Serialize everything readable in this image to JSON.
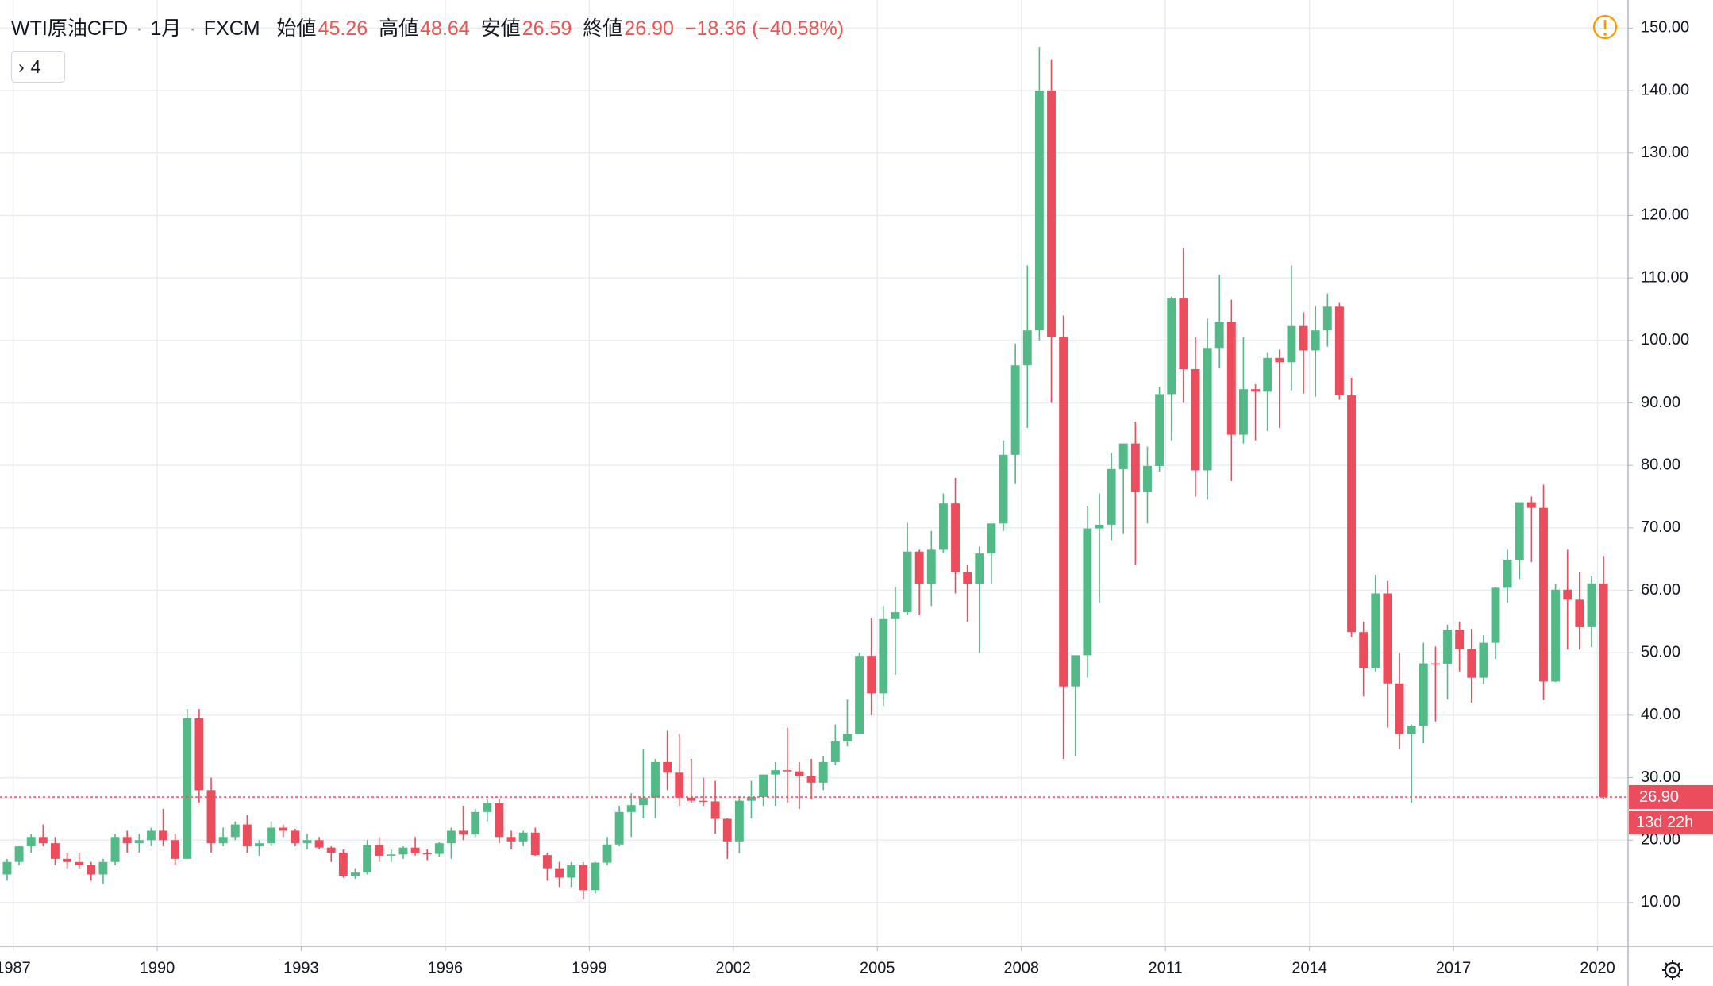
{
  "header": {
    "symbol": "WTI原油CFD",
    "interval": "1月",
    "exchange": "FXCM",
    "open_label": "始値",
    "open": "45.26",
    "high_label": "高値",
    "high": "48.64",
    "low_label": "安値",
    "low": "26.59",
    "close_label": "終値",
    "close": "26.90",
    "change": "−18.36 (−40.58%)",
    "indicator_count": "4"
  },
  "chart_data": {
    "type": "candlestick",
    "up_color": "#53b987",
    "down_color": "#eb4d5c",
    "grid": true,
    "xlim": [
      1986.727,
      2020.636
    ],
    "ylim": [
      3.0,
      154.5
    ],
    "xticks": [
      1987,
      1990,
      1993,
      1996,
      1999,
      2002,
      2005,
      2008,
      2011,
      2014,
      2017,
      2020
    ],
    "yticks": [
      {
        "value": 10,
        "label": "10.00"
      },
      {
        "value": 20,
        "label": "20.00"
      },
      {
        "value": 30,
        "label": "30.00"
      },
      {
        "value": 40,
        "label": "40.00"
      },
      {
        "value": 50,
        "label": "50.00"
      },
      {
        "value": 60,
        "label": "60.00"
      },
      {
        "value": 70,
        "label": "70.00"
      },
      {
        "value": 80,
        "label": "80.00"
      },
      {
        "value": 90,
        "label": "90.00"
      },
      {
        "value": 100,
        "label": "100.00"
      },
      {
        "value": 110,
        "label": "110.00"
      },
      {
        "value": 120,
        "label": "120.00"
      },
      {
        "value": 130,
        "label": "130.00"
      },
      {
        "value": 140,
        "label": "140.00"
      },
      {
        "value": 150,
        "label": "150.00"
      }
    ],
    "price_label": {
      "value": 26.9,
      "label": "26.90"
    },
    "countdown": "13d 22h",
    "x": [
      1986.875,
      1987.125,
      1987.375,
      1987.625,
      1987.875,
      1988.125,
      1988.375,
      1988.625,
      1988.875,
      1989.125,
      1989.375,
      1989.625,
      1989.875,
      1990.125,
      1990.375,
      1990.625,
      1990.875,
      1991.125,
      1991.375,
      1991.625,
      1991.875,
      1992.125,
      1992.375,
      1992.625,
      1992.875,
      1993.125,
      1993.375,
      1993.625,
      1993.875,
      1994.125,
      1994.375,
      1994.625,
      1994.875,
      1995.125,
      1995.375,
      1995.625,
      1995.875,
      1996.125,
      1996.375,
      1996.625,
      1996.875,
      1997.125,
      1997.375,
      1997.625,
      1997.875,
      1998.125,
      1998.375,
      1998.625,
      1998.875,
      1999.125,
      1999.375,
      1999.625,
      1999.875,
      2000.125,
      2000.375,
      2000.625,
      2000.875,
      2001.125,
      2001.375,
      2001.625,
      2001.875,
      2002.125,
      2002.375,
      2002.625,
      2002.875,
      2003.125,
      2003.375,
      2003.625,
      2003.875,
      2004.125,
      2004.375,
      2004.625,
      2004.875,
      2005.125,
      2005.375,
      2005.625,
      2005.875,
      2006.125,
      2006.375,
      2006.625,
      2006.875,
      2007.125,
      2007.375,
      2007.625,
      2007.875,
      2008.125,
      2008.375,
      2008.625,
      2008.875,
      2009.125,
      2009.375,
      2009.625,
      2009.875,
      2010.125,
      2010.375,
      2010.625,
      2010.875,
      2011.125,
      2011.375,
      2011.625,
      2011.875,
      2012.125,
      2012.375,
      2012.625,
      2012.875,
      2013.125,
      2013.375,
      2013.625,
      2013.875,
      2014.125,
      2014.375,
      2014.625,
      2014.875,
      2015.125,
      2015.375,
      2015.625,
      2015.875,
      2016.125,
      2016.375,
      2016.625,
      2016.875,
      2017.125,
      2017.375,
      2017.625,
      2017.875,
      2018.125,
      2018.375,
      2018.625,
      2018.875,
      2019.125,
      2019.375,
      2019.625,
      2019.875,
      2020.125
    ],
    "open": [
      14.5,
      16.5,
      19,
      20.5,
      19.5,
      17,
      16.5,
      16,
      14.5,
      16.5,
      20.5,
      19.5,
      20,
      21.5,
      20,
      17,
      39.5,
      28,
      19.5,
      20.5,
      22.5,
      19,
      19.5,
      22,
      21.5,
      19.5,
      20,
      18.8,
      18,
      14.3,
      14.8,
      19.2,
      17.5,
      17.7,
      18.8,
      17.9,
      17.8,
      19.5,
      21.5,
      20.9,
      24.5,
      25.9,
      20.5,
      19.8,
      21.2,
      17.6,
      15.5,
      14,
      16,
      12,
      16.4,
      19.3,
      24.5,
      25.6,
      26.8,
      32.5,
      30.8,
      26.8,
      26.3,
      26.2,
      23.4,
      19.8,
      26.3,
      26.9,
      30.5,
      31.2,
      31,
      30.2,
      29.2,
      32.5,
      35.8,
      37,
      49.5,
      43.5,
      55.4,
      56.5,
      66.2,
      61,
      66.5,
      73.9,
      62.9,
      61,
      65.9,
      70.7,
      81.7,
      96,
      101.6,
      140,
      100.6,
      44.6,
      49.6,
      69.9,
      70.5,
      79.4,
      83.5,
      75.7,
      79.9,
      91.4,
      106.7,
      95.4,
      79.2,
      98.8,
      103,
      84.9,
      92.2,
      91.8,
      97.2,
      96.5,
      102.3,
      98.4,
      101.6,
      105.4,
      91.2,
      53.3,
      47.6,
      59.5,
      45.1,
      37,
      38.3,
      48.3,
      48.2,
      53.7,
      50.6,
      46,
      51.6,
      60.4,
      64.9,
      74.1,
      73.2,
      45.4,
      60.1,
      58.5,
      54.1,
      61.1
    ],
    "high": [
      17,
      19,
      21,
      22.5,
      20.5,
      18,
      18,
      16.5,
      17,
      21,
      21.5,
      21,
      22,
      25,
      21,
      41,
      41,
      30,
      22,
      23,
      24,
      20,
      23,
      22.5,
      21.8,
      21,
      20.5,
      19,
      18.5,
      15.5,
      20,
      20.5,
      18.5,
      19,
      20.5,
      18.5,
      19.7,
      22,
      25.5,
      25,
      26.5,
      26.5,
      21.5,
      21.5,
      22,
      18,
      16.5,
      16.5,
      16.5,
      16.5,
      20.5,
      25.5,
      27.5,
      34.5,
      33,
      37.5,
      37,
      33,
      30,
      29.5,
      23.5,
      27,
      29.5,
      30.5,
      32.5,
      38,
      32.5,
      33,
      33.5,
      38.5,
      42.5,
      50,
      55.5,
      57.5,
      60.5,
      70.8,
      66.5,
      69.5,
      75.5,
      78,
      64,
      67,
      70.5,
      84,
      99.5,
      112,
      147,
      145,
      104,
      49.5,
      73.5,
      75.5,
      82,
      83,
      87,
      83,
      92.5,
      107,
      114.8,
      100.5,
      103.5,
      110.5,
      106.5,
      100.5,
      93,
      98,
      98.5,
      112,
      104.5,
      105.5,
      107.5,
      106,
      94,
      55,
      62.5,
      61.5,
      50,
      38.5,
      51.6,
      51,
      54.5,
      55,
      53.8,
      52.8,
      60.5,
      66.5,
      72.8,
      75,
      76.9,
      61,
      66.5,
      63,
      62.3,
      65.5
    ],
    "low": [
      13.5,
      16,
      18,
      19,
      16,
      15.5,
      15.5,
      13.5,
      13,
      16,
      18,
      18,
      19,
      19,
      16,
      17,
      26,
      18,
      19,
      20,
      18,
      17.5,
      19,
      20.5,
      19,
      18.5,
      18.5,
      16.5,
      14,
      13.8,
      14.5,
      16.5,
      16.5,
      17,
      17.5,
      16.8,
      17.3,
      17,
      20,
      20.5,
      23,
      19.5,
      18.5,
      19,
      17.5,
      13.5,
      12.5,
      12.5,
      10.5,
      11.5,
      16,
      19,
      20.5,
      23.5,
      23.5,
      28,
      25.5,
      26,
      25.5,
      21,
      17,
      17.9,
      23.5,
      25.5,
      25.5,
      26,
      25,
      26.5,
      28,
      32,
      35,
      37,
      40,
      41.5,
      46.5,
      56,
      56,
      57.5,
      66,
      59.5,
      55,
      50,
      61,
      69.5,
      77,
      86,
      100,
      90,
      33,
      33.5,
      46,
      58,
      68,
      69,
      64,
      70.7,
      79,
      84,
      90,
      75,
      74.5,
      95.5,
      77.5,
      83.5,
      84,
      85.5,
      86,
      92,
      91.5,
      91,
      99,
      90.5,
      52.5,
      43,
      47,
      38,
      34.5,
      26,
      35.5,
      39,
      42.5,
      47,
      42,
      45,
      49,
      58,
      61.8,
      64.5,
      42.4,
      45.3,
      50.5,
      50.5,
      50.9,
      26.59
    ],
    "close": [
      16.5,
      19,
      20.5,
      19.5,
      17,
      16.5,
      16,
      14.5,
      16.5,
      20.5,
      19.5,
      20,
      21.5,
      20,
      17,
      39.5,
      28,
      19.5,
      20.5,
      22.5,
      19,
      19.5,
      22,
      21.5,
      19.5,
      20,
      18.8,
      18,
      14.3,
      14.8,
      19.2,
      17.5,
      17.7,
      18.8,
      17.9,
      17.8,
      19.5,
      21.5,
      20.9,
      24.5,
      25.9,
      20.5,
      19.8,
      21.2,
      17.6,
      15.5,
      14,
      16,
      12,
      16.4,
      19.3,
      24.5,
      25.6,
      26.8,
      32.5,
      30.8,
      26.8,
      26.3,
      26.2,
      23.4,
      19.8,
      26.3,
      26.9,
      30.5,
      31.2,
      31,
      30.2,
      29.2,
      32.5,
      35.8,
      37,
      49.5,
      43.5,
      55.4,
      56.5,
      66.2,
      61,
      66.5,
      73.9,
      62.9,
      61,
      65.9,
      70.7,
      81.7,
      96,
      101.6,
      140,
      100.6,
      44.6,
      49.6,
      69.9,
      70.5,
      79.4,
      83.5,
      75.7,
      79.9,
      91.4,
      106.7,
      95.4,
      79.2,
      98.8,
      103,
      84.9,
      92.2,
      91.8,
      97.2,
      96.5,
      102.3,
      98.4,
      101.6,
      105.4,
      91.2,
      53.3,
      47.6,
      59.5,
      45.1,
      37,
      38.3,
      48.3,
      48.2,
      53.7,
      50.6,
      46,
      51.6,
      60.4,
      64.9,
      74.1,
      73.2,
      45.4,
      60.1,
      58.5,
      54.1,
      61.1,
      26.9
    ]
  }
}
